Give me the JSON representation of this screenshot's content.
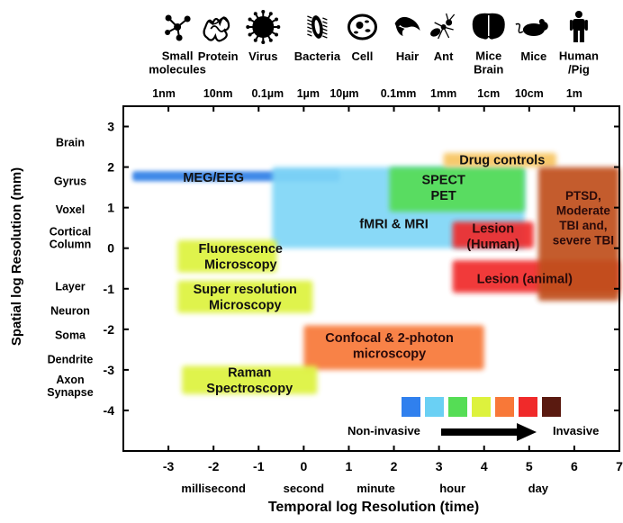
{
  "chart_data": {
    "type": "area",
    "title": "",
    "xlabel": "Temporal log Resolution (time)",
    "ylabel": "Spatial log Resolution (mm)",
    "xlim": [
      -4,
      7
    ],
    "ylim": [
      -5,
      3.5
    ],
    "grid": false,
    "x_ticks": [
      -3,
      -2,
      -1,
      0,
      1,
      2,
      3,
      4,
      5,
      6,
      7
    ],
    "y_ticks": [
      3,
      2,
      1,
      0,
      -1,
      -2,
      -3,
      -4
    ],
    "time_labels": [
      {
        "x": -2.0,
        "label": "millisecond"
      },
      {
        "x": 0.0,
        "label": "second"
      },
      {
        "x": 1.6,
        "label": "minute"
      },
      {
        "x": 3.3,
        "label": "hour"
      },
      {
        "x": 5.2,
        "label": "day"
      }
    ],
    "spatial_labels": [
      {
        "y": 2.6,
        "label": "Brain"
      },
      {
        "y": 1.65,
        "label": "Gyrus"
      },
      {
        "y": 0.95,
        "label": "Voxel"
      },
      {
        "y": 0.25,
        "label": "Cortical\nColumn"
      },
      {
        "y": -0.95,
        "label": "Layer"
      },
      {
        "y": -1.55,
        "label": "Neuron"
      },
      {
        "y": -2.15,
        "label": "Soma"
      },
      {
        "y": -2.75,
        "label": "Dendrite"
      },
      {
        "y": -3.4,
        "label": "Axon\nSynapse"
      }
    ],
    "top_scale": [
      {
        "x": -3.1,
        "label": "1nm"
      },
      {
        "x": -1.9,
        "label": "10nm"
      },
      {
        "x": -0.8,
        "label": "0.1µm"
      },
      {
        "x": 0.1,
        "label": "1µm"
      },
      {
        "x": 0.9,
        "label": "10µm"
      },
      {
        "x": 2.1,
        "label": "0.1mm"
      },
      {
        "x": 3.1,
        "label": "1mm"
      },
      {
        "x": 4.1,
        "label": "1cm"
      },
      {
        "x": 5.0,
        "label": "10cm"
      },
      {
        "x": 6.0,
        "label": "1m"
      }
    ],
    "top_icons": [
      {
        "label": "Small\nmolecules",
        "icon": "molecule-icon",
        "x": -2.8
      },
      {
        "label": "Protein",
        "icon": "protein-icon",
        "x": -1.9
      },
      {
        "label": "Virus",
        "icon": "virus-icon",
        "x": -0.9
      },
      {
        "label": "Bacteria",
        "icon": "bacteria-icon",
        "x": 0.3
      },
      {
        "label": "Cell",
        "icon": "cell-icon",
        "x": 1.3
      },
      {
        "label": "Hair",
        "icon": "hair-icon",
        "x": 2.3
      },
      {
        "label": "Ant",
        "icon": "ant-icon",
        "x": 3.1
      },
      {
        "label": "Mice\nBrain",
        "icon": "brain-icon",
        "x": 4.1
      },
      {
        "label": "Mice",
        "icon": "mouse-icon",
        "x": 5.1
      },
      {
        "label": "Human\n/Pig",
        "icon": "human-icon",
        "x": 6.1
      }
    ],
    "regions": [
      {
        "label": "MEG/EEG",
        "x": [
          -3.8,
          0.8
        ],
        "y": [
          1.65,
          1.9
        ],
        "color": "#2f7fe6",
        "label_at": [
          -2.0,
          1.75
        ]
      },
      {
        "label": "fMRI & MRI",
        "x": [
          -0.7,
          4.9
        ],
        "y": [
          0.0,
          2.0
        ],
        "color": "#7fd6f7",
        "label_at": [
          2.0,
          0.6
        ]
      },
      {
        "label": "SPECT\nPET",
        "x": [
          1.9,
          4.9
        ],
        "y": [
          0.9,
          2.0
        ],
        "color": "#55dd55",
        "label_at": [
          3.1,
          1.5
        ]
      },
      {
        "label": "Drug controls",
        "x": [
          3.1,
          5.6
        ],
        "y": [
          2.0,
          2.35
        ],
        "color": "#f7c560",
        "label_at": [
          4.4,
          2.18
        ]
      },
      {
        "label": "Lesion\n(Human)",
        "x": [
          3.3,
          5.1
        ],
        "y": [
          0.0,
          0.65
        ],
        "color": "#f02a2a",
        "label_at": [
          4.2,
          0.3
        ]
      },
      {
        "label": "Lesion (animal)",
        "x": [
          3.3,
          7.0
        ],
        "y": [
          -1.1,
          -0.3
        ],
        "color": "#f02a2a",
        "label_at": [
          4.9,
          -0.75
        ]
      },
      {
        "label": "PTSD,\nModerate\nTBI and,\nsevere TBI",
        "x": [
          5.2,
          7.0
        ],
        "y": [
          -1.3,
          2.0
        ],
        "color": "#c0501e",
        "label_at": [
          6.2,
          0.75
        ]
      },
      {
        "label": "Fluorescence\nMicroscopy",
        "x": [
          -2.8,
          -0.6
        ],
        "y": [
          -0.6,
          0.2
        ],
        "color": "#ddf23d",
        "label_at": [
          -1.4,
          -0.2
        ]
      },
      {
        "label": "Super resolution\nMicroscopy",
        "x": [
          -2.8,
          0.2
        ],
        "y": [
          -1.6,
          -0.8
        ],
        "color": "#ddf23d",
        "label_at": [
          -1.3,
          -1.2
        ]
      },
      {
        "label": "Confocal & 2-photon\nmicroscopy",
        "x": [
          0.0,
          4.0
        ],
        "y": [
          -3.0,
          -1.9
        ],
        "color": "#f87838",
        "label_at": [
          1.9,
          -2.4
        ]
      },
      {
        "label": "Raman\nSpectroscopy",
        "x": [
          -2.7,
          0.3
        ],
        "y": [
          -3.6,
          -2.9
        ],
        "color": "#ddf23d",
        "label_at": [
          -1.2,
          -3.25
        ]
      }
    ],
    "legend": {
      "colors": [
        "#3080ee",
        "#6ad0f4",
        "#55dd55",
        "#ddf23d",
        "#f87838",
        "#f02a2a",
        "#5a1a10"
      ],
      "left_label": "Non-invasive",
      "right_label": "Invasive"
    }
  }
}
